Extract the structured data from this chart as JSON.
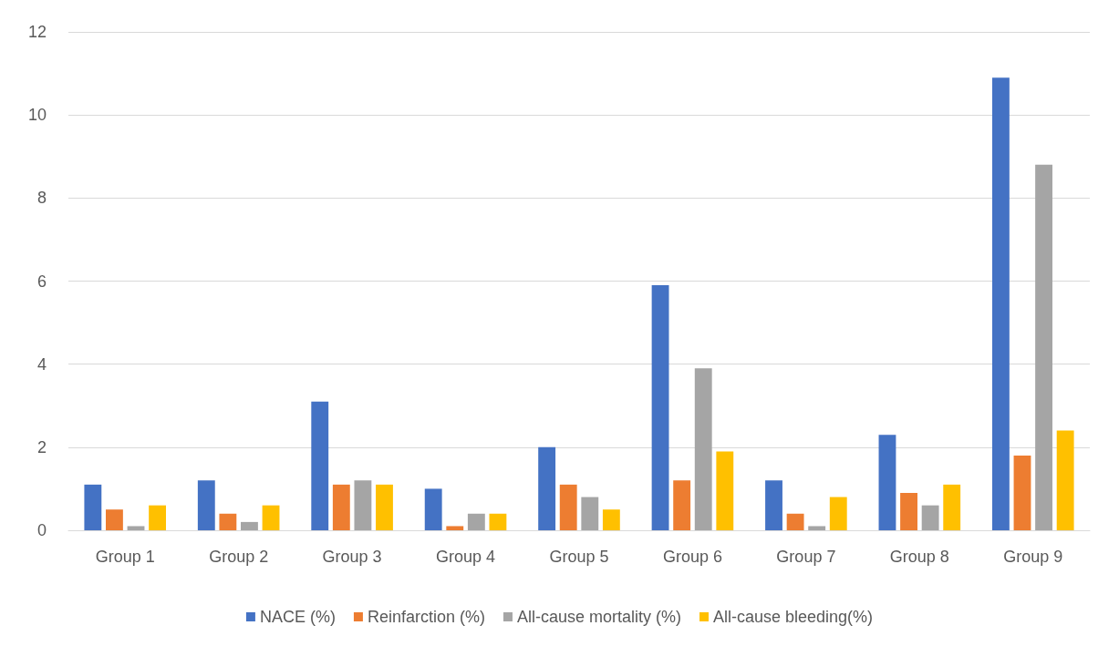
{
  "chart_data": {
    "type": "bar",
    "categories": [
      "Group 1",
      "Group 2",
      "Group 3",
      "Group 4",
      "Group 5",
      "Group 6",
      "Group 7",
      "Group 8",
      "Group 9"
    ],
    "series": [
      {
        "name": "NACE (%)",
        "color": "#4472c4",
        "values": [
          1.1,
          1.2,
          3.1,
          1.0,
          2.0,
          5.9,
          1.2,
          2.3,
          10.9
        ]
      },
      {
        "name": "Reinfarction (%)",
        "color": "#ed7d31",
        "values": [
          0.5,
          0.4,
          1.1,
          0.1,
          1.1,
          1.2,
          0.4,
          0.9,
          1.8
        ]
      },
      {
        "name": "All-cause mortality (%)",
        "color": "#a5a5a5",
        "values": [
          0.1,
          0.2,
          1.2,
          0.4,
          0.8,
          3.9,
          0.1,
          0.6,
          8.8
        ]
      },
      {
        "name": "All-cause bleeding(%)",
        "color": "#ffc000",
        "values": [
          0.6,
          0.6,
          1.1,
          0.4,
          0.5,
          1.9,
          0.8,
          1.1,
          2.4
        ]
      }
    ],
    "ylim": [
      0,
      12
    ],
    "yticks": [
      0,
      2,
      4,
      6,
      8,
      10,
      12
    ],
    "grid": "y",
    "legend": "bottom"
  }
}
